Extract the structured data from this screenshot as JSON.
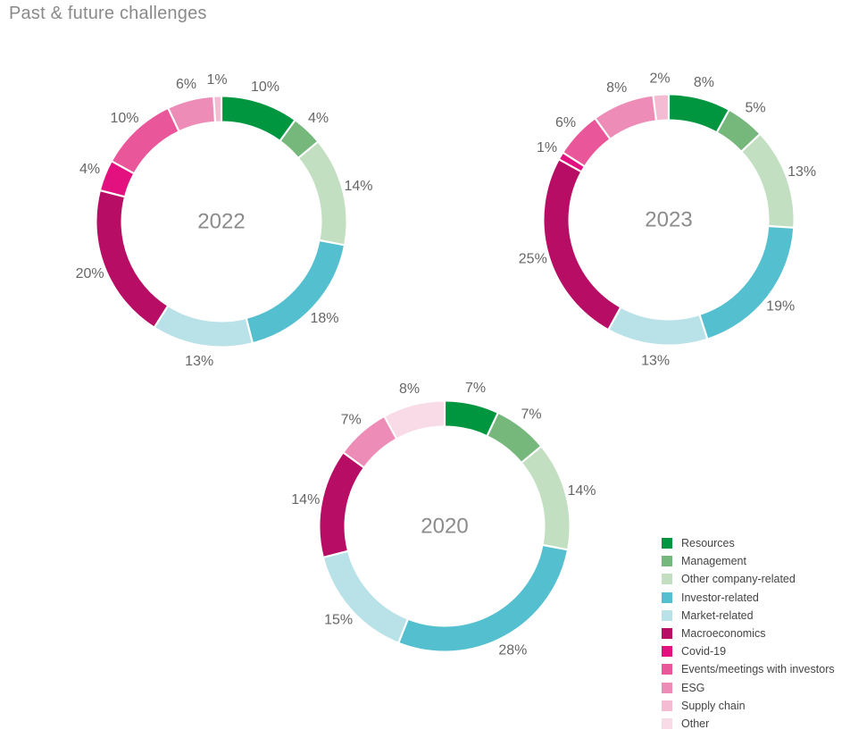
{
  "header": {
    "title": "Past & future challenges"
  },
  "chart_data": [
    {
      "type": "pie",
      "center_label": "2022",
      "categories": [
        "Resources",
        "Management",
        "Other company-related",
        "Investor-related",
        "Market-related",
        "Macroeconomics",
        "Covid-19",
        "Events/meetings with investors",
        "ESG",
        "Supply chain"
      ],
      "values": [
        10,
        4,
        14,
        18,
        13,
        20,
        4,
        10,
        6,
        1
      ],
      "labels": [
        "10%",
        "4%",
        "14%",
        "18%",
        "13%",
        "20%",
        "4%",
        "10%",
        "6%",
        "1%"
      ]
    },
    {
      "type": "pie",
      "center_label": "2023",
      "categories": [
        "Resources",
        "Management",
        "Other company-related",
        "Investor-related",
        "Market-related",
        "Macroeconomics",
        "Covid-19",
        "Events/meetings with investors",
        "ESG",
        "Supply chain"
      ],
      "values": [
        8,
        5,
        13,
        19,
        13,
        25,
        1,
        6,
        8,
        2
      ],
      "labels": [
        "8%",
        "5%",
        "13%",
        "19%",
        "13%",
        "25%",
        "1%",
        "6%",
        "8%",
        "2%"
      ]
    },
    {
      "type": "pie",
      "center_label": "2020",
      "categories": [
        "Resources",
        "Management",
        "Other company-related",
        "Investor-related",
        "Market-related",
        "Macroeconomics",
        "ESG",
        "Other"
      ],
      "values": [
        7,
        7,
        14,
        28,
        15,
        14,
        7,
        8
      ],
      "labels": [
        "7%",
        "7%",
        "14%",
        "28%",
        "15%",
        "14%",
        "7%",
        "8%"
      ]
    }
  ],
  "legend": {
    "placement": "bottom-right",
    "items": [
      {
        "label": "Resources",
        "color": "#009640"
      },
      {
        "label": "Management",
        "color": "#76b77c"
      },
      {
        "label": "Other company-related",
        "color": "#c3dfc2"
      },
      {
        "label": "Investor-related",
        "color": "#54bfcf"
      },
      {
        "label": "Market-related",
        "color": "#b9e1e8"
      },
      {
        "label": "Macroeconomics",
        "color": "#b80d65"
      },
      {
        "label": "Covid-19",
        "color": "#e2117f"
      },
      {
        "label": "Events/meetings with investors",
        "color": "#e9569a"
      },
      {
        "label": "ESG",
        "color": "#ed8cb7"
      },
      {
        "label": "Supply chain",
        "color": "#f4bcd2"
      },
      {
        "label": "Other",
        "color": "#f9dbe8"
      }
    ]
  }
}
